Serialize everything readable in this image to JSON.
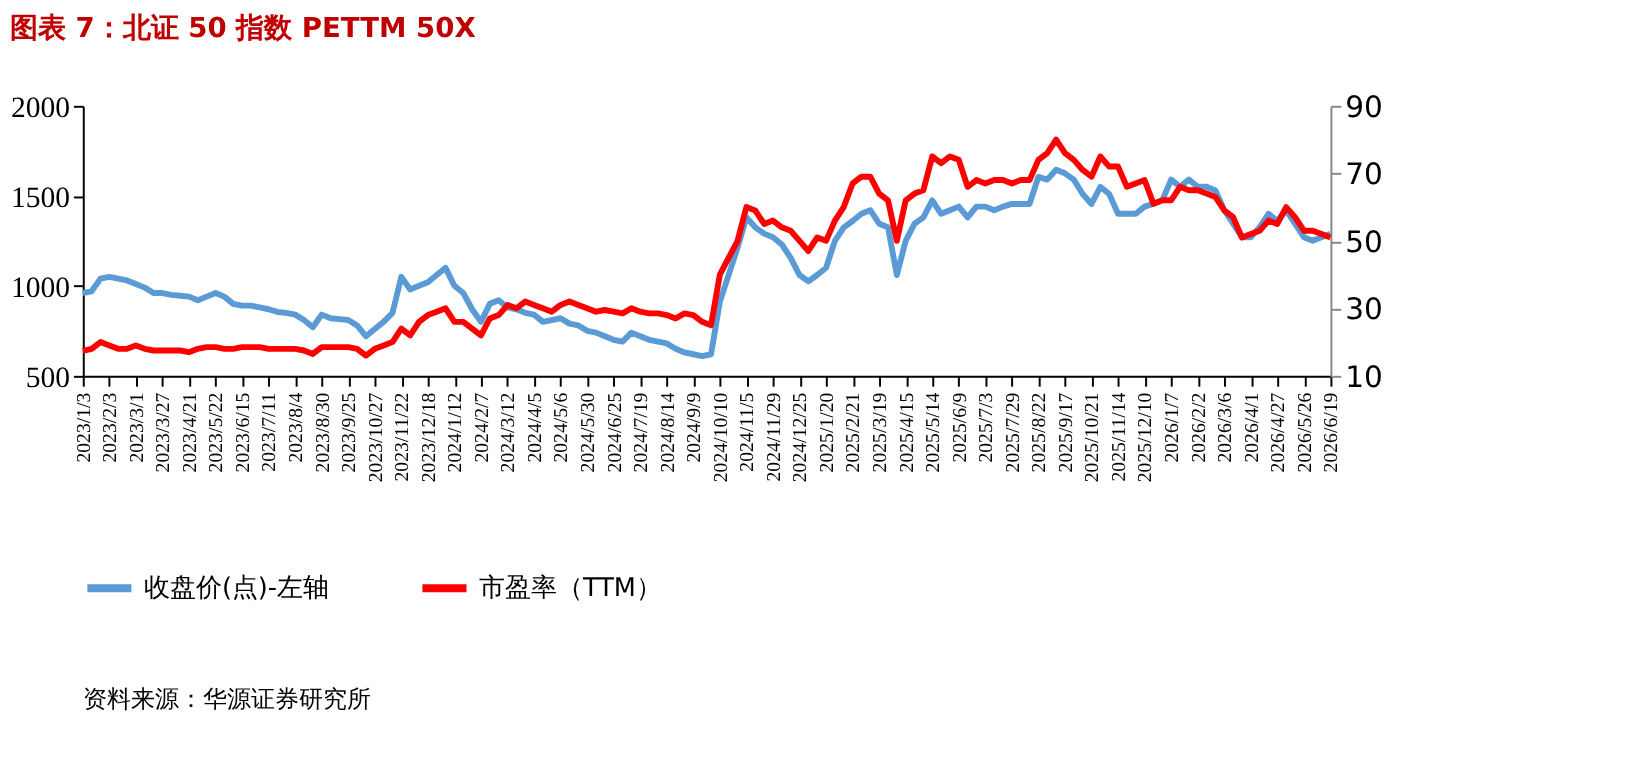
{
  "chart_data": {
    "type": "line",
    "title": "图表 7：北证 50 指数 PETTM 50X",
    "categories": [
      "2023/1/3",
      null,
      null,
      "2023/2/3",
      null,
      null,
      "2023/3/1",
      null,
      null,
      "2023/3/27",
      null,
      null,
      "2023/4/21",
      null,
      null,
      "2023/5/22",
      null,
      null,
      "2023/6/15",
      null,
      null,
      "2023/7/11",
      null,
      null,
      "2023/8/4",
      null,
      null,
      "2023/8/30",
      null,
      null,
      "2023/9/25",
      null,
      null,
      "2023/10/27",
      null,
      null,
      "2023/11/22",
      null,
      null,
      "2023/12/18",
      null,
      null,
      "2024/1/12",
      null,
      null,
      "2024/2/7",
      null,
      null,
      "2024/3/12",
      null,
      null,
      "2024/4/5",
      null,
      null,
      "2024/5/6",
      null,
      null,
      "2024/5/30",
      null,
      null,
      "2024/6/25",
      null,
      null,
      "2024/7/19",
      null,
      null,
      "2024/8/14",
      null,
      null,
      "2024/9/9",
      null,
      null,
      "2024/10/10",
      null,
      null,
      "2024/11/5",
      null,
      null,
      "2024/11/29",
      null,
      null,
      "2024/12/25",
      null,
      null,
      "2025/1/20",
      null,
      null,
      "2025/2/21",
      null,
      null,
      "2025/3/19",
      null,
      null,
      "2025/4/15",
      null,
      null,
      "2025/5/14",
      null,
      null,
      "2025/6/9",
      null,
      null,
      "2025/7/3",
      null,
      null,
      "2025/7/29",
      null,
      null,
      "2025/8/22",
      null,
      null,
      "2025/9/17",
      null,
      null,
      "2025/10/21",
      null,
      null,
      "2025/11/14",
      null,
      null,
      "2025/12/10",
      null,
      null,
      "2026/1/7",
      null,
      null,
      "2026/2/2",
      null,
      null,
      "2026/3/6",
      null,
      null,
      "2026/4/1",
      null,
      null,
      "2026/4/27",
      null,
      null,
      "2026/5/26",
      null,
      null,
      "2026/6/19"
    ],
    "series": [
      {
        "name": "收盘价(点)-左轴",
        "color": "#5b9bd5",
        "values": [
          960,
          970,
          1040,
          1050,
          1040,
          1030,
          1010,
          990,
          960,
          960,
          950,
          945,
          940,
          920,
          940,
          960,
          940,
          900,
          890,
          890,
          880,
          870,
          855,
          850,
          840,
          810,
          770,
          840,
          820,
          815,
          810,
          780,
          720,
          760,
          800,
          850,
          1050,
          980,
          1000,
          1020,
          1060,
          1100,
          1000,
          960,
          870,
          800,
          900,
          920,
          880,
          870,
          850,
          840,
          800,
          810,
          820,
          790,
          780,
          750,
          740,
          720,
          700,
          690,
          740,
          720,
          700,
          690,
          680,
          650,
          630,
          620,
          610,
          620,
          912,
          1062,
          1212,
          1380,
          1325,
          1290,
          1270,
          1230,
          1155,
          1060,
          1025,
          1060,
          1100,
          1250,
          1325,
          1360,
          1400,
          1420,
          1345,
          1325,
          1060,
          1250,
          1345,
          1380,
          1475,
          1400,
          1420,
          1440,
          1380,
          1440,
          1440,
          1420,
          1440,
          1455,
          1455,
          1455,
          1605,
          1590,
          1645,
          1625,
          1590,
          1510,
          1455,
          1550,
          1510,
          1400,
          1400,
          1400,
          1440,
          1455,
          1475,
          1590,
          1550,
          1590,
          1550,
          1550,
          1530,
          1420,
          1345,
          1270,
          1270,
          1325,
          1400,
          1360,
          1420,
          1345,
          1270,
          1250,
          1270,
          1290
        ]
      },
      {
        "name": "市盈率（TTM）",
        "color": "#ff0000",
        "axis": "y2",
        "values": [
          17.4,
          18,
          20,
          19,
          18,
          18,
          19,
          18,
          17.5,
          17.5,
          17.5,
          17.5,
          17,
          18,
          18.5,
          18.5,
          18,
          18,
          18.5,
          18.5,
          18.5,
          18,
          18,
          18,
          18,
          17.5,
          16.5,
          18.5,
          18.5,
          18.5,
          18.5,
          18,
          16,
          18,
          19,
          20,
          24,
          22,
          26,
          28,
          29,
          30,
          26,
          26,
          24,
          22,
          27,
          28,
          31,
          30,
          32,
          31,
          30,
          29,
          31,
          32,
          31,
          30,
          29,
          29.5,
          29,
          28.5,
          30,
          29,
          28.5,
          28.5,
          28,
          27,
          28.5,
          28,
          26,
          25,
          40,
          45,
          50,
          60,
          59,
          55,
          56,
          54,
          53,
          50,
          47,
          51,
          50,
          56,
          60,
          67,
          69,
          69,
          64,
          62,
          50,
          62,
          64,
          65,
          75,
          73,
          75,
          74,
          66,
          68,
          67,
          68,
          68,
          67,
          68,
          68,
          74,
          76,
          80,
          76,
          74,
          71,
          69,
          75,
          72,
          72,
          66,
          67,
          68,
          61,
          62,
          62,
          66,
          65,
          65,
          64,
          63,
          59,
          57,
          51,
          52,
          53,
          56,
          55,
          60,
          57,
          53,
          53,
          52,
          51
        ]
      }
    ],
    "ylim": [
      500,
      2000
    ],
    "yticks": [
      500,
      1000,
      1500,
      2000
    ],
    "y2lim": [
      10,
      90
    ],
    "y2ticks": [
      10,
      30,
      50,
      70,
      90
    ],
    "legend": "bottom",
    "grid": false,
    "marker": "none",
    "line_style": "solid",
    "annotations": [
      "资料来源：华源证券研究所"
    ]
  }
}
